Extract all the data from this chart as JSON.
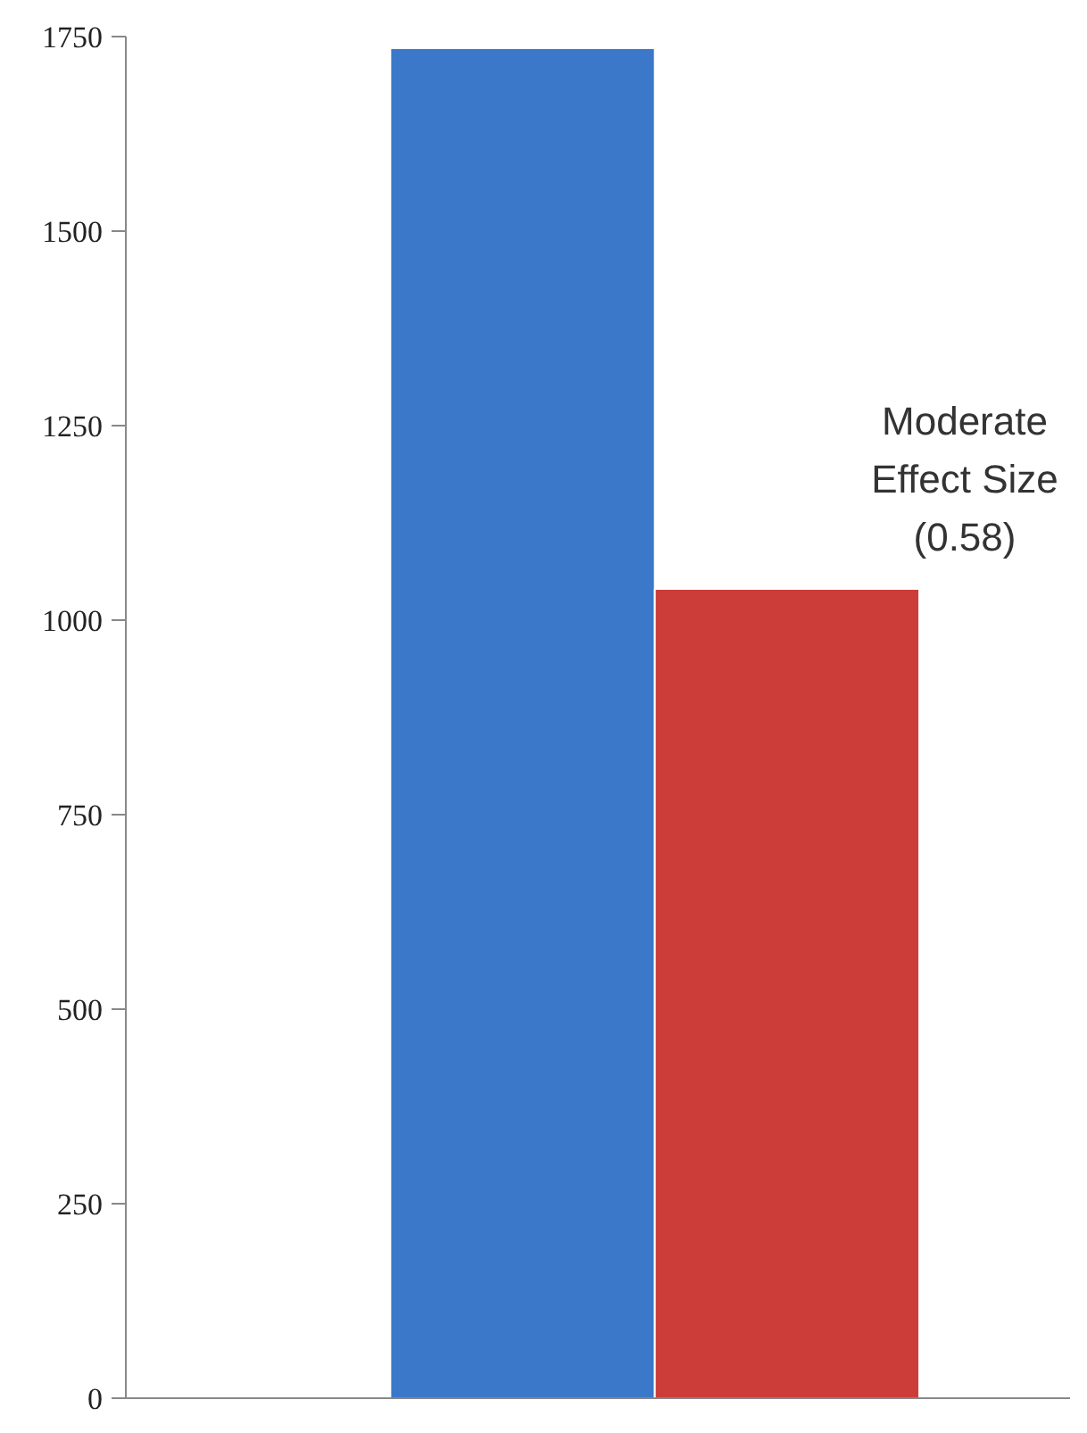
{
  "chart_data": {
    "type": "bar",
    "categories": [
      null,
      null
    ],
    "values": [
      1735,
      1040
    ],
    "colors": [
      "#3b78c9",
      "#cc3d3a"
    ],
    "ylim": [
      0,
      1750
    ],
    "yticks": [
      0,
      250,
      500,
      750,
      1000,
      1250,
      1500,
      1750
    ],
    "annotations": [
      "Moderate\nEffect Size\n(0.58)"
    ],
    "tick_labels": "y",
    "grid": false
  }
}
